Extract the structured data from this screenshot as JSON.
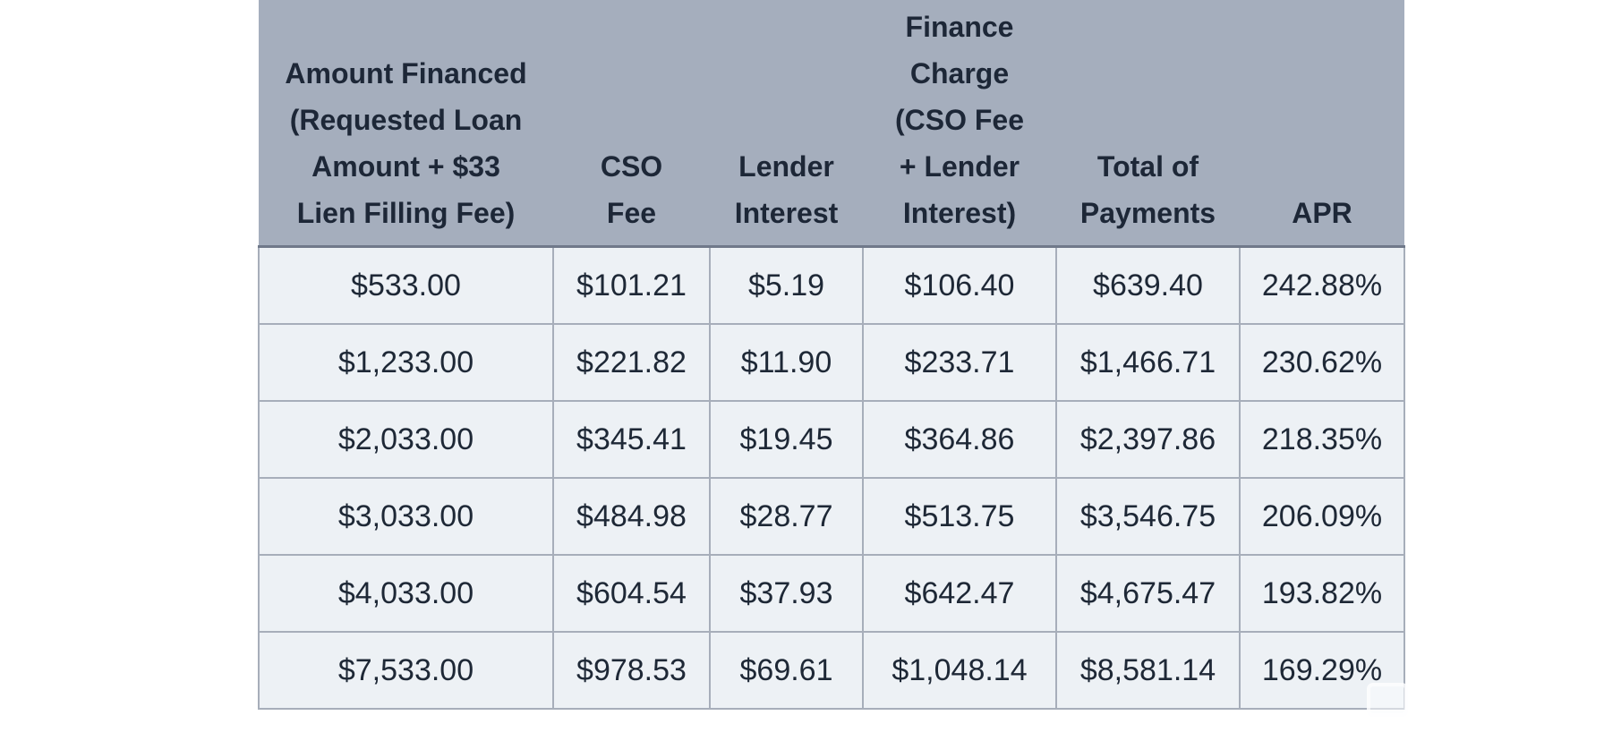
{
  "chart_data": {
    "type": "table",
    "title": "Loan cost disclosure table",
    "columns": [
      {
        "id": "amount_financed",
        "label": "Amount Financed\n(Requested Loan\nAmount + $33\nLien Filling Fee)"
      },
      {
        "id": "cso_fee",
        "label": "CSO\nFee"
      },
      {
        "id": "lender_interest",
        "label": "Lender\nInterest"
      },
      {
        "id": "finance_charge",
        "label": "Finance\nCharge\n(CSO Fee\n+ Lender\nInterest)"
      },
      {
        "id": "total_of_payments",
        "label": "Total of\nPayments"
      },
      {
        "id": "apr",
        "label": "APR"
      }
    ],
    "rows": [
      [
        "$533.00",
        "$101.21",
        "$5.19",
        "$106.40",
        "$639.40",
        "242.88%"
      ],
      [
        "$1,233.00",
        "$221.82",
        "$11.90",
        "$233.71",
        "$1,466.71",
        "230.62%"
      ],
      [
        "$2,033.00",
        "$345.41",
        "$19.45",
        "$364.86",
        "$2,397.86",
        "218.35%"
      ],
      [
        "$3,033.00",
        "$484.98",
        "$28.77",
        "$513.75",
        "$3,546.75",
        "206.09%"
      ],
      [
        "$4,033.00",
        "$604.54",
        "$37.93",
        "$642.47",
        "$4,675.47",
        "193.82%"
      ],
      [
        "$7,533.00",
        "$978.53",
        "$69.61",
        "$1,048.14",
        "$8,581.14",
        "169.29%"
      ]
    ]
  },
  "colors": {
    "page_background": "#ffffff",
    "header_background": "#a5aebd",
    "header_text": "#1d2737",
    "header_bottom_border": "#70798a",
    "cell_background": "#edf1f5",
    "cell_border": "#a7aeba",
    "cell_text": "#1e2836"
  },
  "icons": {
    "watermark": "rounded-square-overlay-icon"
  }
}
